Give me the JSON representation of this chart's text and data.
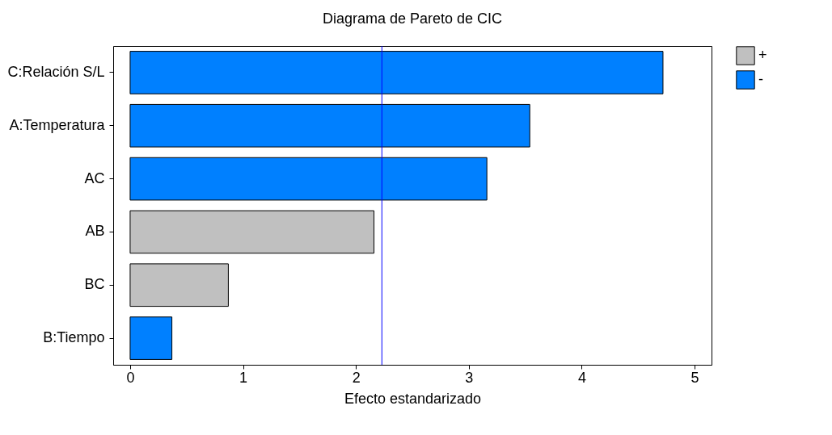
{
  "chart_data": {
    "type": "bar",
    "orientation": "horizontal",
    "title": "Diagrama de Pareto de CIC",
    "xlabel": "Efecto estandarizado",
    "categories": [
      "C:Relación S/L",
      "A:Temperatura",
      "AC",
      "AB",
      "BC",
      "B:Tiempo"
    ],
    "series": [
      {
        "name": "+",
        "color": "#c0c0c0",
        "values": [
          null,
          null,
          null,
          2.16,
          0.87,
          null
        ]
      },
      {
        "name": "-",
        "color": "#0080ff",
        "values": [
          4.72,
          3.54,
          3.16,
          null,
          null,
          0.37
        ]
      }
    ],
    "xlim": [
      -0.15,
      5.15
    ],
    "xticks": [
      0,
      1,
      2,
      3,
      4,
      5
    ],
    "grid": false,
    "legend": "top right",
    "ref_lines": [
      {
        "axis": "x",
        "value": 2.23,
        "color": "#0000ff"
      }
    ]
  }
}
